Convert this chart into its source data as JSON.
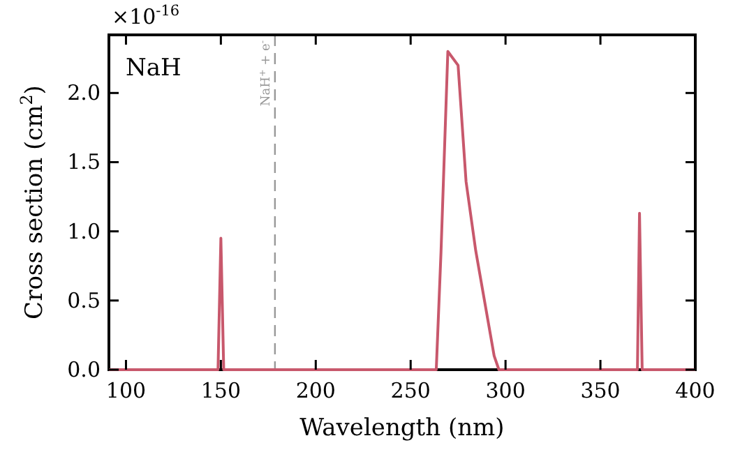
{
  "chart_data": {
    "type": "line",
    "xlabel": "Wavelength (nm)",
    "ylabel": "Cross section (cm$^{2}$)",
    "annotations": [
      "NaH",
      "×10$^{-16}$"
    ],
    "x": [
      91,
      148.5,
      150,
      151.5,
      263.5,
      266,
      269.6,
      275,
      279.2,
      284.3,
      294,
      296.5,
      369.5,
      370.6,
      372,
      400
    ],
    "series": [
      {
        "color": "#c8586c",
        "values": [
          0,
          0,
          0.95,
          0,
          0,
          0.85,
          2.3,
          2.2,
          1.36,
          0.86,
          0.1,
          0,
          0,
          1.13,
          0,
          0
        ]
      }
    ],
    "xlim": [
      91,
      400
    ],
    "xticks": [
      100,
      150,
      200,
      250,
      300,
      350,
      400
    ],
    "ylim": [
      0,
      2.42
    ],
    "yticks": [
      {
        "value": 0,
        "label": "0.0"
      },
      {
        "value": 0.5,
        "label": "0.5"
      },
      {
        "value": 1,
        "label": "1.0"
      },
      {
        "value": 1.5,
        "label": "1.5"
      },
      {
        "value": 2,
        "label": "2.0"
      }
    ],
    "ref_lines": [
      {
        "axis": "x",
        "value": 178.5,
        "label": "NaH$^{+}$ + e$^{-}$",
        "color": "#999999",
        "line_style": "dashed"
      }
    ],
    "line_style": "solid"
  }
}
